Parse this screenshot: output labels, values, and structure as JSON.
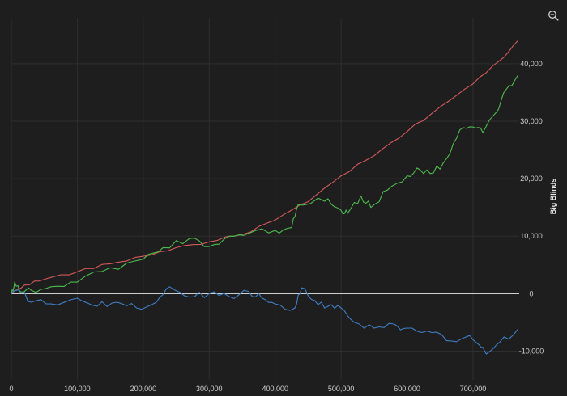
{
  "chart_data": {
    "type": "line",
    "ylabel": "Big Blinds",
    "xlim": [
      0,
      770000
    ],
    "ylim": [
      -15000,
      48000
    ],
    "x_ticks": [
      0,
      100000,
      200000,
      300000,
      400000,
      500000,
      600000,
      700000
    ],
    "x_tick_labels": [
      "0",
      "100,000",
      "200,000",
      "300,000",
      "400,000",
      "500,000",
      "600,000",
      "700,000"
    ],
    "y_ticks": [
      -10000,
      0,
      10000,
      20000,
      30000,
      40000
    ],
    "y_tick_labels": [
      "-10,000",
      "0",
      "10,000",
      "20,000",
      "30,000",
      "40,000"
    ],
    "grid": true,
    "y_axis_position": "right",
    "series": [
      {
        "color": "#d45a5a",
        "x": [
          0,
          20000,
          50000,
          100000,
          150000,
          200000,
          250000,
          300000,
          350000,
          400000,
          450000,
          500000,
          550000,
          600000,
          650000,
          700000,
          740000,
          768000
        ],
        "y": [
          0,
          1500,
          2500,
          3800,
          5200,
          6500,
          8000,
          9000,
          10300,
          12800,
          16000,
          20500,
          24000,
          28200,
          32500,
          36500,
          40500,
          44000
        ]
      },
      {
        "color": "#4cbb4c",
        "x": [
          0,
          5000,
          15000,
          30000,
          60000,
          100000,
          150000,
          200000,
          230000,
          270000,
          300000,
          330000,
          360000,
          400000,
          425000,
          435000,
          460000,
          480000,
          500000,
          510000,
          530000,
          545000,
          570000,
          600000,
          620000,
          640000,
          660000,
          680000,
          700000,
          715000,
          735000,
          750000,
          768000
        ],
        "y": [
          0,
          2000,
          300,
          600,
          1200,
          2000,
          4500,
          6000,
          8000,
          9600,
          8200,
          10000,
          10500,
          11000,
          11500,
          15500,
          16200,
          16500,
          14500,
          14000,
          17000,
          15000,
          18000,
          20500,
          21500,
          21000,
          23500,
          28500,
          29000,
          28000,
          31500,
          35500,
          38000
        ]
      },
      {
        "color": "#3f7fc4",
        "x": [
          0,
          10000,
          30000,
          60000,
          100000,
          130000,
          160000,
          190000,
          220000,
          240000,
          270000,
          300000,
          330000,
          360000,
          380000,
          400000,
          430000,
          440000,
          460000,
          480000,
          500000,
          520000,
          550000,
          580000,
          600000,
          630000,
          660000,
          690000,
          710000,
          720000,
          740000,
          768000
        ],
        "y": [
          0,
          700,
          -1500,
          -1800,
          -800,
          -2200,
          -1500,
          -2500,
          -1500,
          1200,
          -600,
          0,
          -500,
          400,
          -800,
          -1800,
          -2500,
          1000,
          -1200,
          -2200,
          -2500,
          -5000,
          -6000,
          -5300,
          -6000,
          -6500,
          -8200,
          -7500,
          -9000,
          -10500,
          -8500,
          -6200
        ]
      }
    ]
  },
  "icons": {
    "zoom": "zoom-out-magnifier-icon"
  }
}
